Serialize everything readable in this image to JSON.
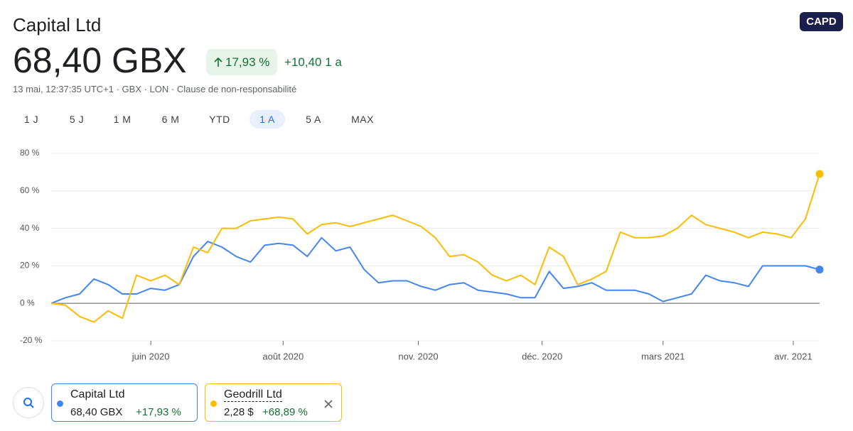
{
  "header": {
    "title": "Capital Ltd",
    "price": "68,40 GBX",
    "change_pct": "17,93 %",
    "change_abs": "+10,40 1 a",
    "meta": "13 mai, 12:37:35 UTC+1 · GBX · LON · Clause de non-responsabilité",
    "badge": "CAPD"
  },
  "ranges": [
    "1 J",
    "5 J",
    "1 M",
    "6 M",
    "YTD",
    "1 A",
    "5 A",
    "MAX"
  ],
  "selected_range": 5,
  "chart_data": {
    "type": "line",
    "categories": [
      null,
      null,
      null,
      null,
      null,
      null,
      null,
      null,
      null,
      null,
      null,
      null,
      null,
      null,
      null,
      null,
      null,
      null,
      null,
      null,
      null,
      null,
      null,
      null,
      null,
      null,
      null,
      null,
      null,
      null,
      null,
      null,
      null,
      null,
      null,
      null,
      null,
      null,
      null,
      null,
      null,
      null,
      null,
      null,
      null,
      null,
      null,
      null,
      null,
      null,
      null,
      null,
      null,
      null,
      null
    ],
    "series": [
      {
        "name": "Capital Ltd",
        "color": "#4285f4",
        "values": [
          0,
          3,
          5,
          13,
          10,
          5,
          5,
          8,
          7,
          10,
          25,
          33,
          30,
          25,
          22,
          31,
          32,
          31,
          25,
          35,
          28,
          30,
          18,
          11,
          12,
          12,
          9,
          7,
          10,
          11,
          7,
          6,
          5,
          3,
          3,
          17,
          8,
          9,
          11,
          7,
          7,
          7,
          5,
          1,
          3,
          5,
          15,
          12,
          11,
          9,
          20,
          20,
          20,
          20,
          18
        ]
      },
      {
        "name": "Geodrill Ltd",
        "color": "#fbbc04",
        "values": [
          0,
          -1,
          -7,
          -10,
          -4,
          -8,
          15,
          12,
          15,
          10,
          30,
          27,
          40,
          40,
          44,
          45,
          46,
          45,
          37,
          42,
          43,
          41,
          43,
          45,
          47,
          44,
          41,
          35,
          25,
          26,
          22,
          15,
          12,
          15,
          10,
          30,
          25,
          10,
          13,
          17,
          38,
          35,
          35,
          36,
          40,
          47,
          42,
          40,
          38,
          35,
          38,
          37,
          35,
          45,
          69
        ]
      }
    ],
    "ylim": [
      -20,
      80
    ],
    "yticks": [
      {
        "value": -20,
        "label": "-20 %"
      },
      {
        "value": 0,
        "label": "0 %"
      },
      {
        "value": 20,
        "label": "20 %"
      },
      {
        "value": 40,
        "label": "40 %"
      },
      {
        "value": 60,
        "label": "60 %"
      },
      {
        "value": 80,
        "label": "80 %"
      }
    ],
    "xticks": [
      {
        "value": 7,
        "label": "juin 2020"
      },
      {
        "value": 16.3,
        "label": "août 2020"
      },
      {
        "value": 25.8,
        "label": "nov. 2020"
      },
      {
        "value": 34.5,
        "label": "déc. 2020"
      },
      {
        "value": 43,
        "label": "mars 2021"
      },
      {
        "value": 52.15,
        "label": "avr. 2021"
      }
    ],
    "grid": true
  },
  "legend_cards": [
    {
      "price": "68,40 GBX",
      "change": "+17,93 %"
    },
    {
      "price": "2,28 $",
      "change": "+68,89 %"
    }
  ]
}
